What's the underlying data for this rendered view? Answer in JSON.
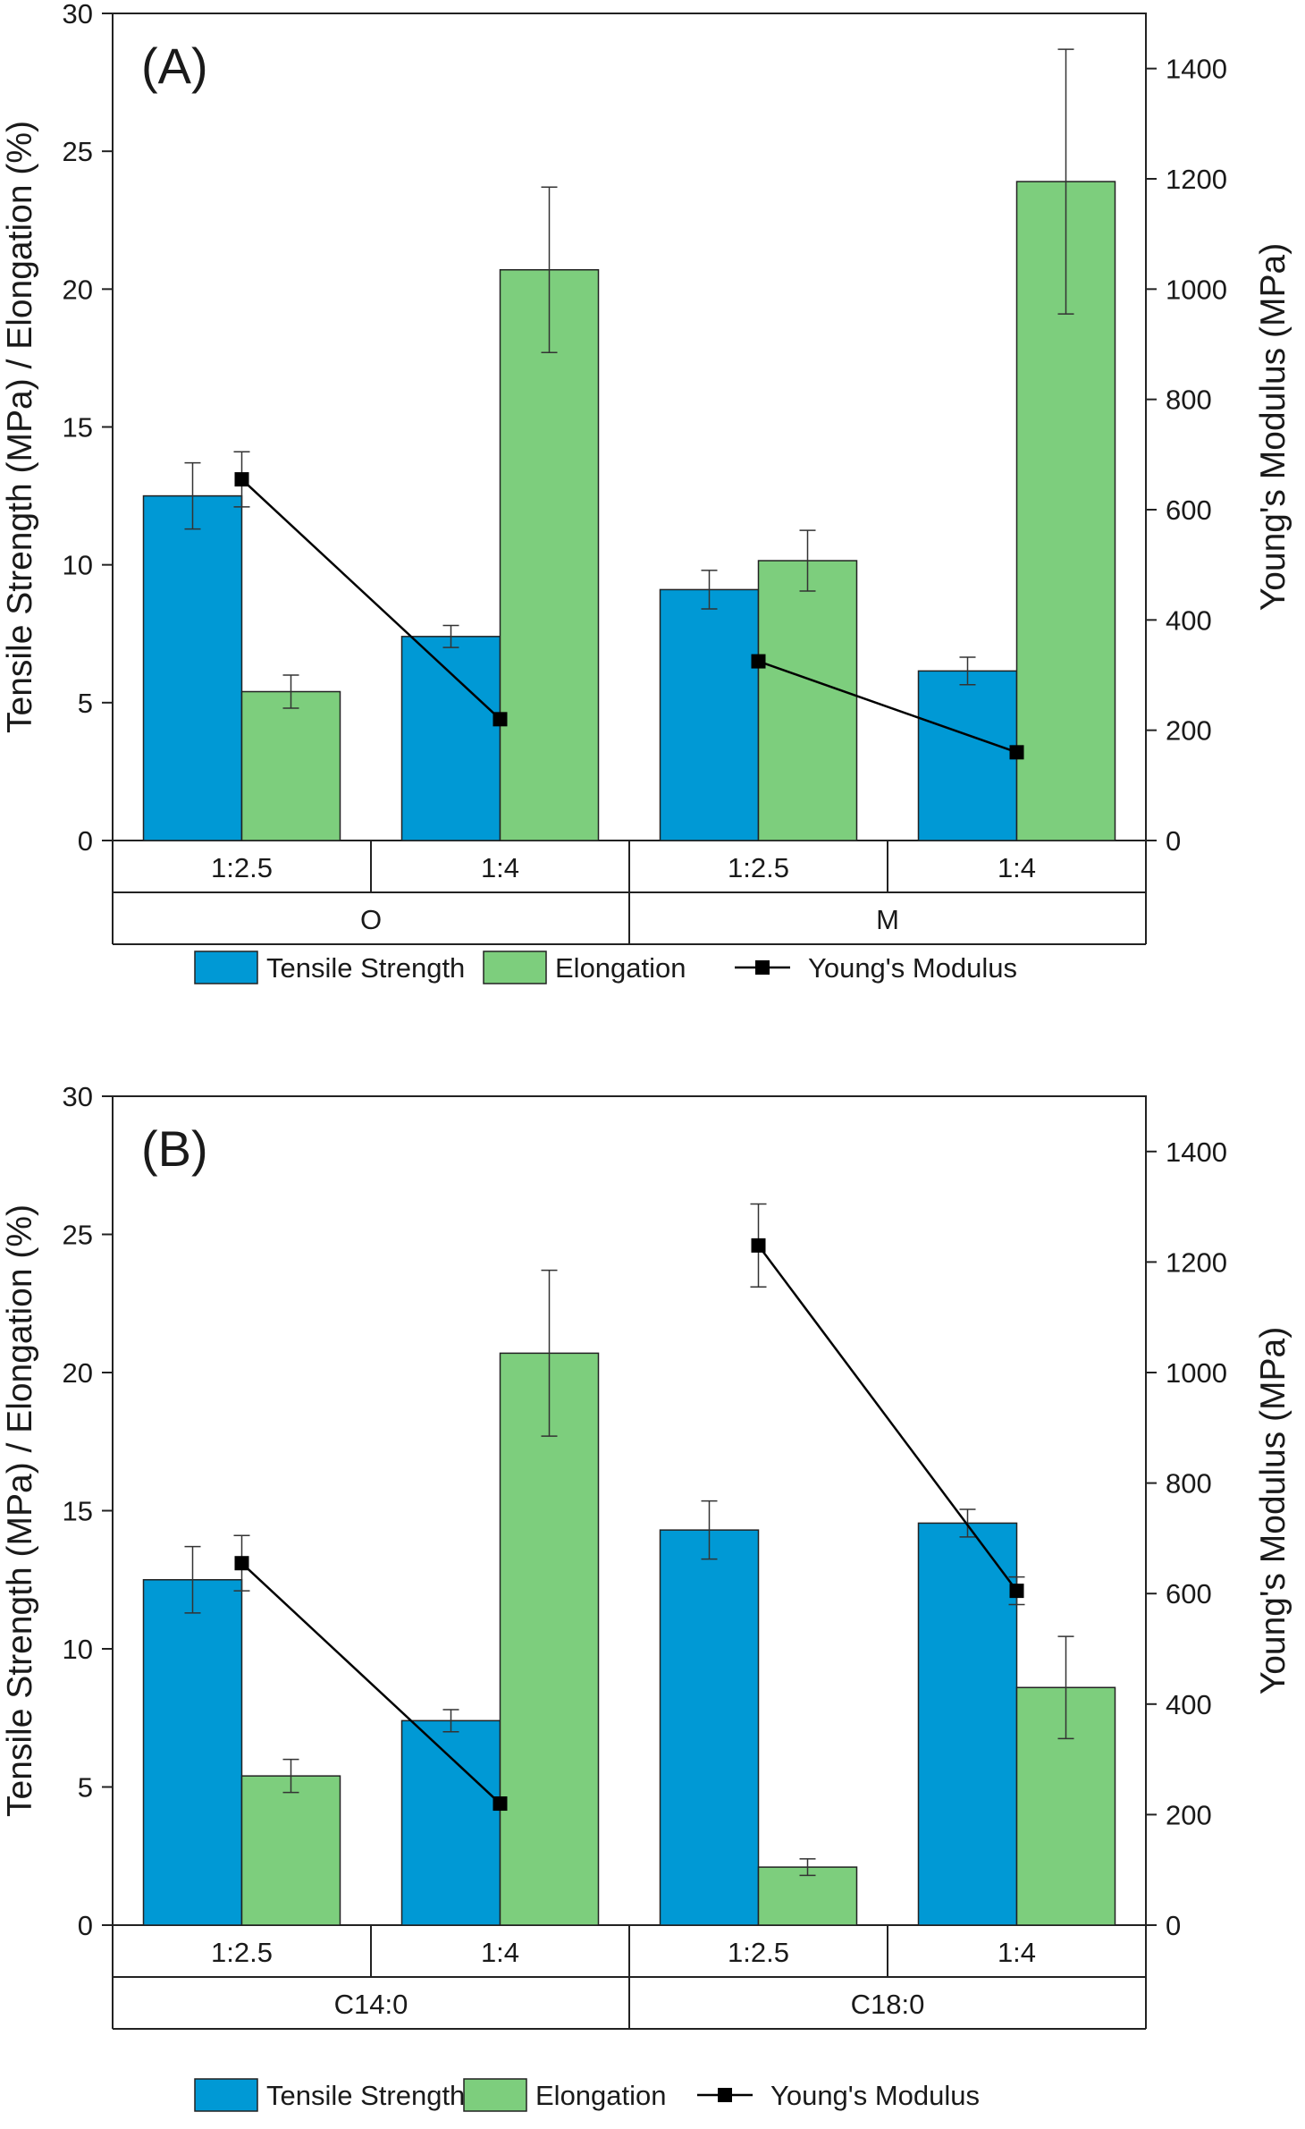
{
  "colors": {
    "tensile": "#0099d5",
    "elongation": "#7dce7d",
    "modulus": "#000000"
  },
  "chart_data": [
    {
      "type": "bar",
      "panel_label": "(A)",
      "ylabel": "Tensile Strength (MPa) / Elongation (%)",
      "y2label": "Young's Modulus (MPa)",
      "ylim": [
        0,
        30
      ],
      "y2lim": [
        0,
        1500
      ],
      "yticks": [
        "0",
        "5",
        "10",
        "15",
        "20",
        "25",
        "30"
      ],
      "y2ticks": [
        "0",
        "200",
        "400",
        "600",
        "800",
        "1000",
        "1200",
        "1400"
      ],
      "groups": [
        {
          "name": "O",
          "categories": [
            "1:2.5",
            "1:4"
          ]
        },
        {
          "name": "M",
          "categories": [
            "1:2.5",
            "1:4"
          ]
        }
      ],
      "series": [
        {
          "name": "Tensile Strength",
          "kind": "bar",
          "values": [
            12.5,
            7.4,
            9.1,
            6.15
          ],
          "errors": [
            1.2,
            0.4,
            0.7,
            0.5
          ]
        },
        {
          "name": "Elongation",
          "kind": "bar",
          "values": [
            5.4,
            20.7,
            10.15,
            23.9
          ],
          "errors": [
            0.6,
            3.0,
            1.1,
            4.8
          ]
        },
        {
          "name": "Young's Modulus",
          "kind": "line",
          "axis": "right",
          "values": [
            655,
            220,
            325,
            160
          ],
          "errors": [
            50,
            0,
            0,
            0
          ]
        }
      ],
      "legend": [
        "Tensile Strength",
        "Elongation",
        "Young's Modulus"
      ],
      "legend_position": "bottom"
    },
    {
      "type": "bar",
      "panel_label": "(B)",
      "ylabel": "Tensile Strength (MPa) / Elongation (%)",
      "y2label": "Young's Modulus (MPa)",
      "ylim": [
        0,
        30
      ],
      "y2lim": [
        0,
        1500
      ],
      "yticks": [
        "0",
        "5",
        "10",
        "15",
        "20",
        "25",
        "30"
      ],
      "y2ticks": [
        "0",
        "200",
        "400",
        "600",
        "800",
        "1000",
        "1200",
        "1400"
      ],
      "groups": [
        {
          "name": "C14:0",
          "categories": [
            "1:2.5",
            "1:4"
          ]
        },
        {
          "name": "C18:0",
          "categories": [
            "1:2.5",
            "1:4"
          ]
        }
      ],
      "series": [
        {
          "name": "Tensile Strength",
          "kind": "bar",
          "values": [
            12.5,
            7.4,
            14.3,
            14.55
          ],
          "errors": [
            1.2,
            0.4,
            1.05,
            0.5
          ]
        },
        {
          "name": "Elongation",
          "kind": "bar",
          "values": [
            5.4,
            20.7,
            2.1,
            8.6
          ],
          "errors": [
            0.6,
            3.0,
            0.3,
            1.85
          ]
        },
        {
          "name": "Young's Modulus",
          "kind": "line",
          "axis": "right",
          "values": [
            655,
            220,
            1230,
            605
          ],
          "errors": [
            50,
            0,
            75,
            25
          ]
        }
      ],
      "legend": [
        "Tensile Strength",
        "Elongation",
        "Young's Modulus"
      ],
      "legend_position": "bottom"
    }
  ]
}
